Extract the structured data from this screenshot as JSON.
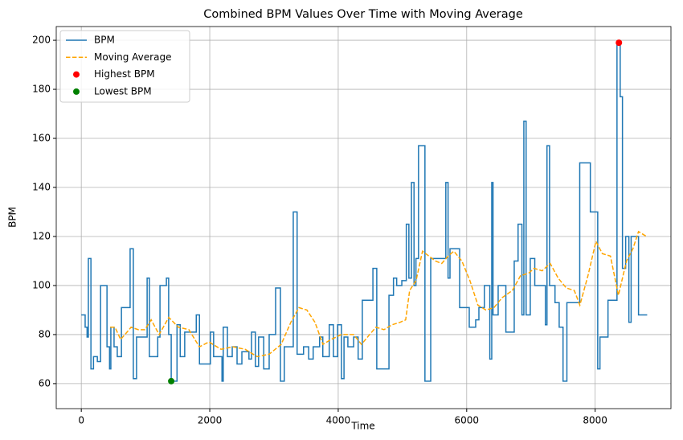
{
  "chart_data": {
    "type": "line",
    "title": "Combined BPM Values Over Time with Moving Average",
    "xlabel": "Time",
    "ylabel": "BPM",
    "xlim": [
      -390,
      9180
    ],
    "ylim": [
      49.8,
      205.6
    ],
    "xticks": [
      0,
      2000,
      4000,
      6000,
      8000
    ],
    "yticks": [
      60,
      80,
      100,
      120,
      140,
      160,
      180,
      200
    ],
    "grid": true,
    "legend": "upper left",
    "series": [
      {
        "name": "BPM",
        "color": "#1f77b4",
        "drawstyle": "steps-post",
        "x": [
          0,
          60,
          90,
          110,
          150,
          190,
          250,
          300,
          400,
          440,
          460,
          510,
          560,
          625,
          760,
          810,
          860,
          1025,
          1060,
          1190,
          1225,
          1325,
          1360,
          1400,
          1490,
          1540,
          1610,
          1675,
          1790,
          1840,
          2010,
          2060,
          2190,
          2210,
          2275,
          2350,
          2425,
          2500,
          2610,
          2650,
          2710,
          2760,
          2840,
          2925,
          3025,
          3100,
          3160,
          3300,
          3360,
          3460,
          3540,
          3610,
          3710,
          3760,
          3860,
          3925,
          3990,
          4050,
          4090,
          4150,
          4240,
          4310,
          4375,
          4540,
          4600,
          4790,
          4860,
          4910,
          4990,
          5060,
          5100,
          5140,
          5180,
          5210,
          5250,
          5350,
          5440,
          5675,
          5710,
          5740,
          5890,
          6040,
          6140,
          6190,
          6275,
          6360,
          6390,
          6410,
          6490,
          6610,
          6740,
          6800,
          6860,
          6890,
          6925,
          6990,
          7060,
          7180,
          7225,
          7250,
          7290,
          7375,
          7440,
          7500,
          7560,
          7760,
          7925,
          8040,
          8075,
          8200,
          8340,
          8390,
          8425,
          8475,
          8525,
          8560,
          8675,
          8810
        ],
        "values": [
          88,
          83,
          79,
          111,
          66,
          71,
          69,
          100,
          75,
          66,
          83,
          75,
          71,
          91,
          115,
          62,
          79,
          103,
          71,
          79,
          100,
          103,
          80,
          61,
          84,
          71,
          81,
          81,
          88,
          68,
          81,
          71,
          61,
          83,
          71,
          75,
          68,
          73,
          70,
          81,
          67,
          79,
          66,
          80,
          99,
          61,
          75,
          130,
          72,
          75,
          70,
          75,
          79,
          71,
          84,
          71,
          84,
          62,
          79,
          75,
          79,
          70,
          94,
          107,
          66,
          96,
          103,
          100,
          102,
          125,
          103,
          142,
          100,
          111,
          157,
          61,
          111,
          142,
          103,
          115,
          91,
          83,
          86,
          91,
          100,
          70,
          142,
          88,
          100,
          81,
          110,
          125,
          88,
          167,
          88,
          111,
          100,
          100,
          84,
          157,
          100,
          93,
          83,
          61,
          93,
          150,
          130,
          66,
          79,
          94,
          199,
          177,
          107,
          120,
          85,
          120,
          88,
          88
        ]
      },
      {
        "name": "Moving Average",
        "color": "orange",
        "linestyle": "dashed",
        "x": [
          450,
          525,
          612,
          712,
          775,
          888,
          988,
          1088,
          1212,
          1362,
          1512,
          1675,
          1838,
          1988,
          2175,
          2362,
          2550,
          2738,
          2925,
          3112,
          3262,
          3388,
          3512,
          3638,
          3762,
          3888,
          4050,
          4238,
          4362,
          4488,
          4588,
          4712,
          4838,
          4962,
          5050,
          5112,
          5212,
          5312,
          5412,
          5512,
          5612,
          5712,
          5800,
          5925,
          6050,
          6175,
          6300,
          6425,
          6550,
          6712,
          6838,
          6962,
          7050,
          7175,
          7300,
          7425,
          7550,
          7675,
          7762,
          7888,
          8012,
          8112,
          8238,
          8362,
          8488,
          8588,
          8675,
          8800
        ],
        "values": [
          83,
          83,
          78,
          81,
          83,
          82,
          82,
          86,
          80,
          87,
          83,
          82,
          75,
          77,
          74,
          75,
          74,
          71,
          72,
          76,
          85,
          91,
          90,
          85,
          76,
          78,
          80,
          80,
          76,
          80,
          83,
          82,
          84,
          85,
          86,
          98,
          102,
          114,
          112,
          110,
          109,
          112,
          114,
          110,
          102,
          92,
          90,
          91,
          95,
          98,
          104,
          105,
          107,
          106,
          109,
          103,
          99,
          98,
          92,
          104,
          118,
          113,
          112,
          96,
          110,
          115,
          122,
          120
        ]
      },
      {
        "name": "Highest BPM",
        "color": "red",
        "marker": "o",
        "x": [
          8370
        ],
        "values": [
          199
        ]
      },
      {
        "name": "Lowest BPM",
        "color": "green",
        "marker": "o",
        "x": [
          1400
        ],
        "values": [
          61
        ]
      }
    ]
  }
}
